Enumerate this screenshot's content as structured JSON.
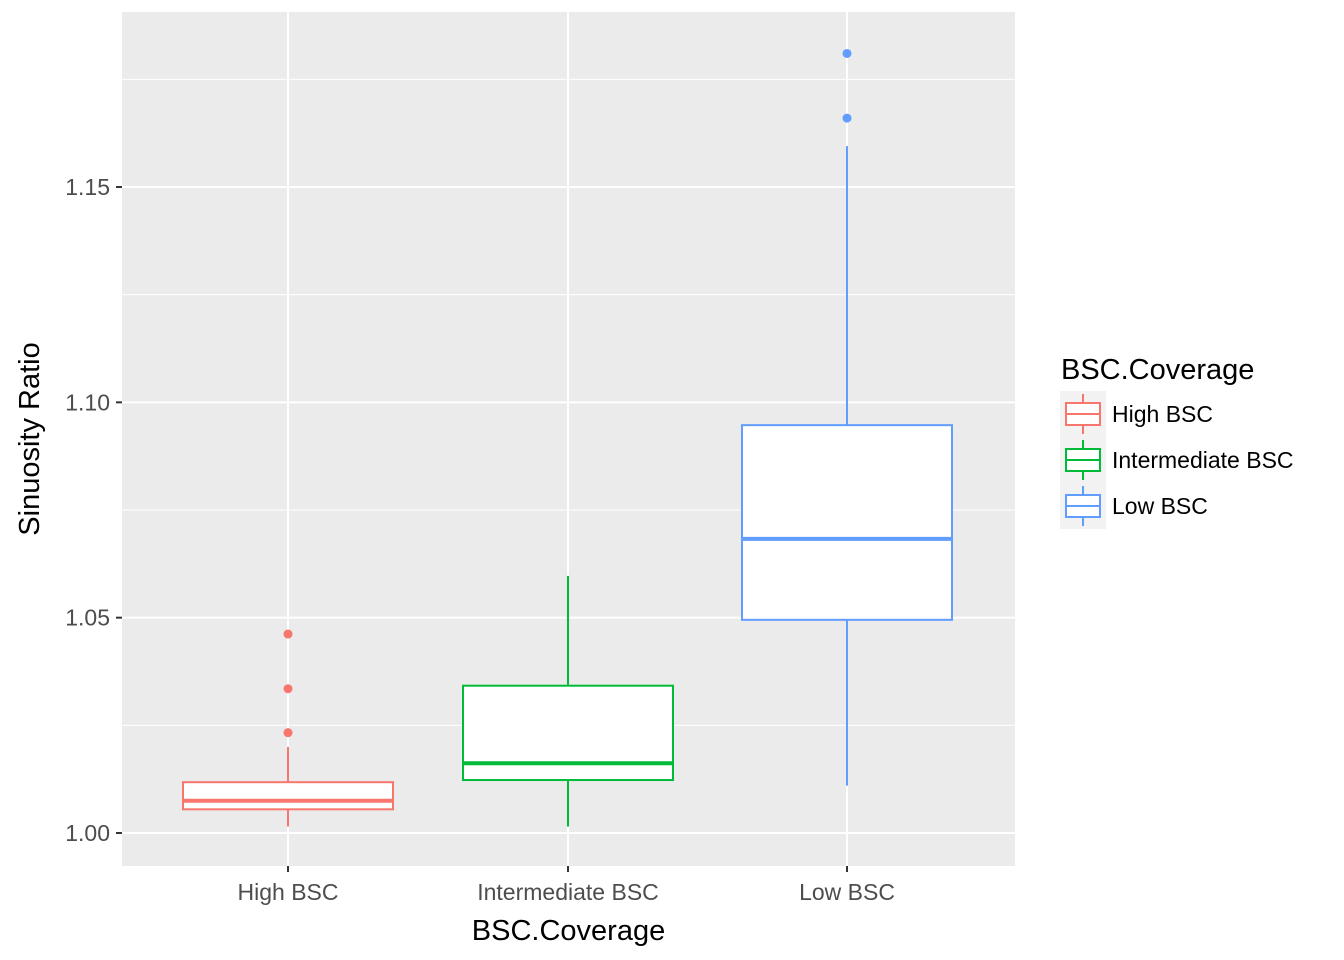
{
  "chart_data": {
    "type": "boxplot",
    "xlabel": "BSC.Coverage",
    "ylabel": "Sinuosity Ratio",
    "categories": [
      "High BSC",
      "Intermediate BSC",
      "Low BSC"
    ],
    "ylim": [
      0.992,
      1.191
    ],
    "yticks": [
      1.0,
      1.05,
      1.1,
      1.15
    ],
    "ytick_labels": [
      "1.00",
      "1.05",
      "1.10",
      "1.15"
    ],
    "grid": true,
    "legend": {
      "title": "BSC.Coverage",
      "position": "right",
      "entries": [
        "High BSC",
        "Intermediate BSC",
        "Low BSC"
      ]
    },
    "series": [
      {
        "name": "High BSC",
        "color": "#F8766D",
        "whisker_low": 1.0015,
        "q1": 1.0055,
        "median": 1.0075,
        "q3": 1.0118,
        "whisker_high": 1.02,
        "outliers": [
          1.0233,
          1.0335,
          1.0462
        ]
      },
      {
        "name": "Intermediate BSC",
        "color": "#00BA38",
        "whisker_low": 1.0015,
        "q1": 1.0123,
        "median": 1.0162,
        "q3": 1.0342,
        "whisker_high": 1.0597,
        "outliers": []
      },
      {
        "name": "Low BSC",
        "color": "#619CFF",
        "whisker_low": 1.011,
        "q1": 1.0495,
        "median": 1.0683,
        "q3": 1.0947,
        "whisker_high": 1.1595,
        "outliers": [
          1.166,
          1.181
        ]
      }
    ]
  }
}
